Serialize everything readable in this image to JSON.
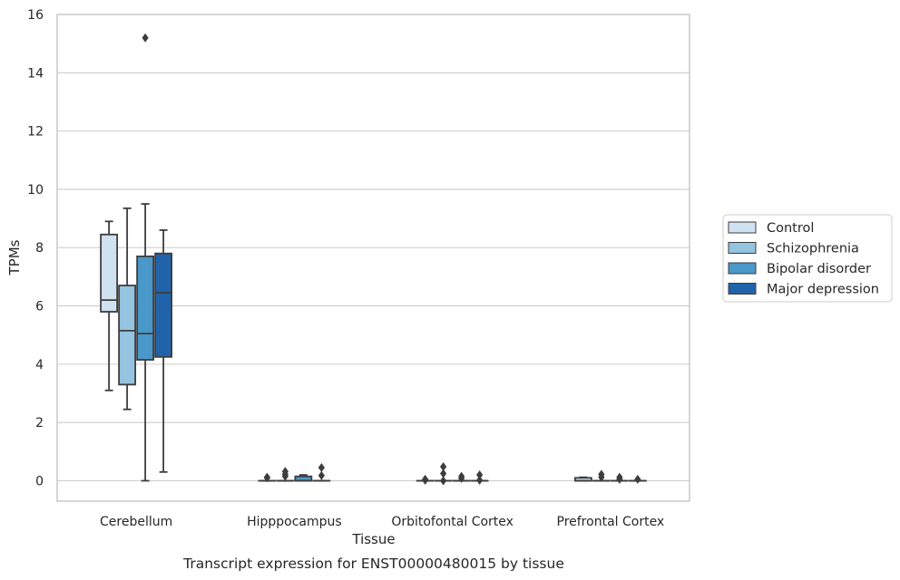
{
  "chart_data": {
    "type": "box",
    "xlabel": "Tissue",
    "ylabel": "TPMs",
    "caption": "Transcript expression for ENST00000480015 by tissue",
    "ylim": [
      -0.7,
      16
    ],
    "yticks": [
      0,
      2,
      4,
      6,
      8,
      10,
      12,
      14,
      16
    ],
    "grid": true,
    "legend_position": "right",
    "colors": {
      "Control": "#d0e1f2",
      "Schizophrenia": "#94c4df",
      "Bipolar disorder": "#4a98c9",
      "Major depression": "#2163aa"
    },
    "categories": [
      "Cerebellum",
      "Hipppocampus",
      "Orbitofontal Cortex",
      "Prefrontal Cortex"
    ],
    "series": [
      {
        "name": "Control",
        "boxes": [
          {
            "whislo": 3.1,
            "q1": 5.8,
            "med": 6.2,
            "q3": 8.45,
            "whishi": 8.9,
            "fliers": []
          },
          {
            "whislo": 0,
            "q1": 0,
            "med": 0,
            "q3": 0,
            "whishi": 0,
            "fliers": [
              0.12,
              0.1
            ]
          },
          {
            "whislo": 0,
            "q1": 0,
            "med": 0,
            "q3": 0,
            "whishi": 0,
            "fliers": [
              0.05,
              0.02
            ]
          },
          {
            "whislo": 0,
            "q1": 0,
            "med": 0,
            "q3": 0.1,
            "whishi": 0.12,
            "fliers": []
          }
        ]
      },
      {
        "name": "Schizophrenia",
        "boxes": [
          {
            "whislo": 2.45,
            "q1": 3.3,
            "med": 5.15,
            "q3": 6.7,
            "whishi": 9.35,
            "fliers": []
          },
          {
            "whislo": 0,
            "q1": 0,
            "med": 0,
            "q3": 0,
            "whishi": 0,
            "fliers": [
              0.32,
              0.22,
              0.15
            ]
          },
          {
            "whislo": 0,
            "q1": 0,
            "med": 0,
            "q3": 0,
            "whishi": 0,
            "fliers": [
              0.48,
              0.25,
              0.0
            ]
          },
          {
            "whislo": 0,
            "q1": 0,
            "med": 0,
            "q3": 0,
            "whishi": 0,
            "fliers": [
              0.22,
              0.12
            ]
          }
        ]
      },
      {
        "name": "Bipolar disorder",
        "boxes": [
          {
            "whislo": 0,
            "q1": 4.15,
            "med": 5.05,
            "q3": 7.7,
            "whishi": 9.5,
            "fliers": [
              15.2
            ]
          },
          {
            "whislo": 0,
            "q1": 0,
            "med": 0,
            "q3": 0.15,
            "whishi": 0.2,
            "fliers": []
          },
          {
            "whislo": 0,
            "q1": 0,
            "med": 0,
            "q3": 0,
            "whishi": 0,
            "fliers": [
              0.15,
              0.08
            ]
          },
          {
            "whislo": 0,
            "q1": 0,
            "med": 0,
            "q3": 0,
            "whishi": 0,
            "fliers": [
              0.12,
              0.05
            ]
          }
        ]
      },
      {
        "name": "Major depression",
        "boxes": [
          {
            "whislo": 0.3,
            "q1": 4.25,
            "med": 6.45,
            "q3": 7.8,
            "whishi": 8.6,
            "fliers": []
          },
          {
            "whislo": 0,
            "q1": 0,
            "med": 0,
            "q3": 0,
            "whishi": 0,
            "fliers": [
              0.45,
              0.18
            ]
          },
          {
            "whislo": 0,
            "q1": 0,
            "med": 0,
            "q3": 0,
            "whishi": 0,
            "fliers": [
              0.2,
              0.02
            ]
          },
          {
            "whislo": 0,
            "q1": 0,
            "med": 0,
            "q3": 0,
            "whishi": 0,
            "fliers": [
              0.05
            ]
          }
        ]
      }
    ]
  }
}
